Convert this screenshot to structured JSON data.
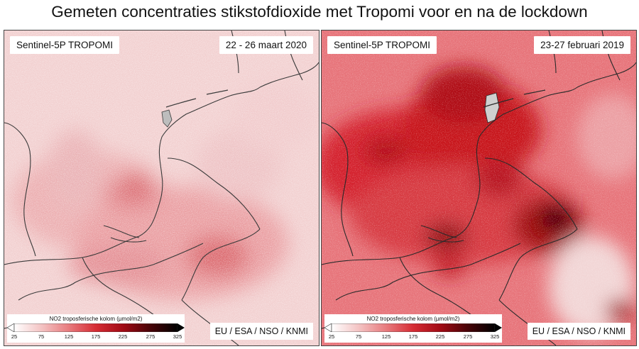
{
  "title": "Gemeten concentraties stikstofdioxide met Tropomi voor en na de lockdown",
  "panels": [
    {
      "satellite": "Sentinel-5P TROPOMI",
      "period": "22 - 26 maart 2020",
      "credit": "EU / ESA / NSO / KNMI",
      "intensity": "low",
      "colors": {
        "background": "#f2d0d0",
        "hotspot": "#d9404a"
      }
    },
    {
      "satellite": "Sentinel-5P TROPOMI",
      "period": "23-27 februari 2019",
      "credit": "EU / ESA / NSO / KNMI",
      "intensity": "high",
      "colors": {
        "background": "#e7747a",
        "hotspot": "#1a0a0a"
      }
    }
  ],
  "legend": {
    "title": "NO2 troposferische kolom (µmol/m2)",
    "ticks": [
      "25",
      "75",
      "125",
      "175",
      "225",
      "275",
      "325"
    ],
    "min": 25,
    "max": 325,
    "colors": [
      "#ffffff",
      "#f3c2c2",
      "#e87d80",
      "#d62c34",
      "#a00a14",
      "#4a0408",
      "#000000"
    ]
  }
}
